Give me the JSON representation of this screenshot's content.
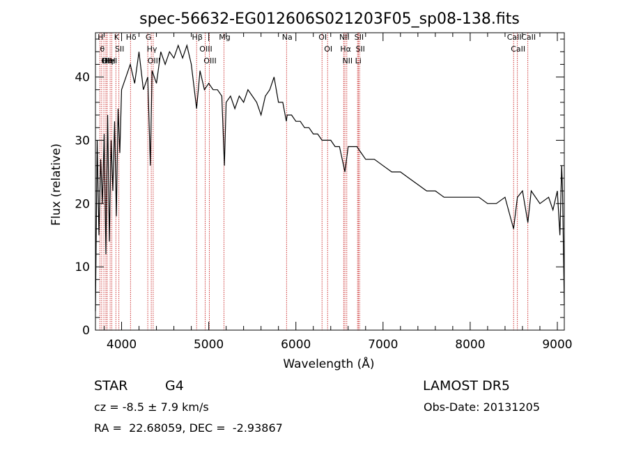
{
  "chart_data": {
    "type": "line",
    "title": "spec-56632-EG012606S021203F05_sp08-138.fits",
    "xlabel": "Wavelength (Å)",
    "ylabel": "Flux (relative)",
    "xlim": [
      3700,
      9080
    ],
    "ylim": [
      0,
      47
    ],
    "x_ticks": [
      4000,
      5000,
      6000,
      7000,
      8000,
      9000
    ],
    "y_ticks": [
      0,
      10,
      20,
      30,
      40
    ],
    "grid": false,
    "legend": "none",
    "line_color": "#000000",
    "marker_color": "#c00000",
    "series": [
      {
        "x": [
          3700,
          3720,
          3740,
          3760,
          3780,
          3800,
          3820,
          3840,
          3860,
          3880,
          3900,
          3920,
          3940,
          3960,
          3980,
          4000,
          4050,
          4100,
          4150,
          4200,
          4250,
          4300,
          4330,
          4350,
          4400,
          4450,
          4500,
          4550,
          4600,
          4650,
          4700,
          4750,
          4800,
          4861,
          4900,
          4950,
          5000,
          5050,
          5100,
          5150,
          5180,
          5200,
          5250,
          5300,
          5350,
          5400,
          5450,
          5500,
          5550,
          5600,
          5650,
          5700,
          5750,
          5800,
          5850,
          5890,
          5900,
          5950,
          6000,
          6050,
          6100,
          6150,
          6200,
          6250,
          6300,
          6350,
          6400,
          6450,
          6500,
          6563,
          6600,
          6650,
          6700,
          6750,
          6800,
          6900,
          7000,
          7100,
          7200,
          7300,
          7400,
          7500,
          7600,
          7700,
          7800,
          7900,
          8000,
          8100,
          8200,
          8300,
          8400,
          8498,
          8542,
          8600,
          8662,
          8700,
          8800,
          8900,
          8950,
          9000,
          9030,
          9050,
          9060,
          9080
        ],
        "y": [
          3,
          30,
          15,
          27,
          20,
          31,
          12,
          34,
          14,
          30,
          22,
          33,
          18,
          35,
          28,
          38,
          40,
          42,
          39,
          44,
          38,
          40,
          26,
          41,
          39,
          44,
          42,
          44,
          43,
          45,
          43,
          45,
          42,
          35,
          41,
          38,
          39,
          38,
          38,
          37,
          26,
          36,
          37,
          35,
          37,
          36,
          38,
          37,
          36,
          34,
          37,
          38,
          40,
          36,
          36,
          33,
          34,
          34,
          33,
          33,
          32,
          32,
          31,
          31,
          30,
          30,
          30,
          29,
          29,
          25,
          29,
          29,
          29,
          28,
          27,
          27,
          26,
          25,
          25,
          24,
          23,
          22,
          22,
          21,
          21,
          21,
          21,
          21,
          20,
          20,
          21,
          16,
          21,
          22,
          17,
          22,
          20,
          21,
          19,
          22,
          15,
          26,
          22,
          4
        ]
      }
    ],
    "line_markers": [
      {
        "wl": 3750,
        "label": "H"
      },
      {
        "wl": 3771,
        "label": "θ"
      },
      {
        "wl": 3797,
        "label": "H"
      },
      {
        "wl": 3820,
        "label": "OII"
      },
      {
        "wl": 3835,
        "label": "Hη"
      },
      {
        "wl": 3869,
        "label": "HeI"
      },
      {
        "wl": 3889,
        "label": "H"
      },
      {
        "wl": 3934,
        "label": "K"
      },
      {
        "wl": 3969,
        "label": "SII"
      },
      {
        "wl": 4102,
        "label": "Hδ"
      },
      {
        "wl": 4300,
        "label": "G"
      },
      {
        "wl": 4340,
        "label": "Hγ"
      },
      {
        "wl": 4363,
        "label": "OIII"
      },
      {
        "wl": 4861,
        "label": "Hβ"
      },
      {
        "wl": 4959,
        "label": "OIII"
      },
      {
        "wl": 5007,
        "label": "OIII"
      },
      {
        "wl": 5175,
        "label": "Mg"
      },
      {
        "wl": 5893,
        "label": "Na"
      },
      {
        "wl": 6300,
        "label": "OI"
      },
      {
        "wl": 6364,
        "label": "OI"
      },
      {
        "wl": 6548,
        "label": "NII"
      },
      {
        "wl": 6563,
        "label": "Hα"
      },
      {
        "wl": 6584,
        "label": "NII"
      },
      {
        "wl": 6707,
        "label": "Li"
      },
      {
        "wl": 6717,
        "label": "SII"
      },
      {
        "wl": 6731,
        "label": "SII"
      },
      {
        "wl": 8498,
        "label": "CaII"
      },
      {
        "wl": 8542,
        "label": "CaII"
      },
      {
        "wl": 8662,
        "label": "CaII"
      }
    ]
  },
  "info": {
    "object_type": "STAR",
    "subclass": "G4",
    "survey": "LAMOST DR5",
    "cz_line": "cz = -8.5 ± 7.9 km/s",
    "obs_date_line": "Obs-Date: 20131205",
    "coord_line": "RA =  22.68059, DEC =  -2.93867"
  }
}
